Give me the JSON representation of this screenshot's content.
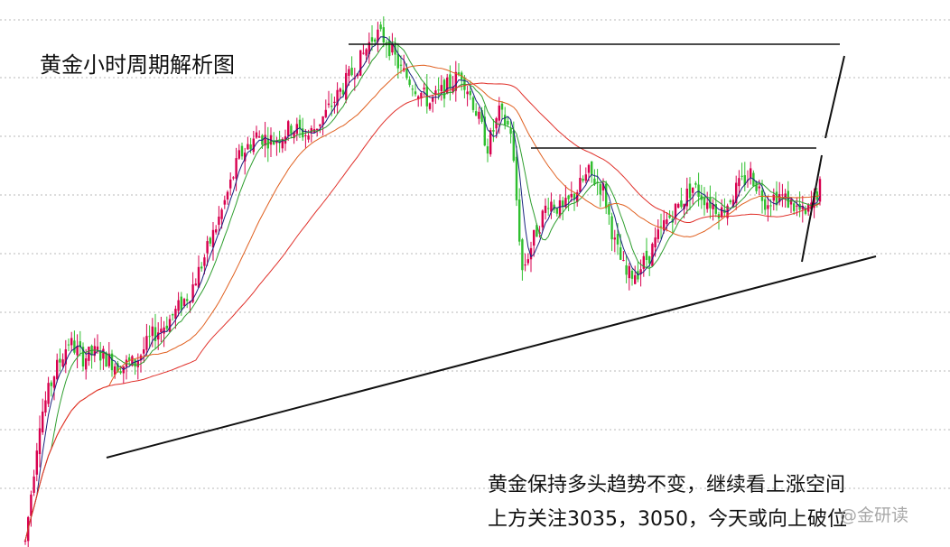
{
  "title": "黄金小时周期解析图",
  "annotations": [
    "黄金保持多头趋势不变，继续看上涨空间",
    "上方关注3035，3050，今天或向上破位"
  ],
  "watermark": "@金研读",
  "colors": {
    "up": "#d8004f",
    "down": "#2fbf2f",
    "ma_short": "#1a237e",
    "ma_mid": "#2e9e2e",
    "ma_long": "#e06020",
    "ma_xlong": "#e0302a",
    "trendline": "#111111",
    "grid": "#b8b8b8"
  },
  "chart_data": {
    "type": "candlestick",
    "timeframe": "hourly",
    "price_axis_visible": false,
    "grid": "dashed horizontal",
    "trendlines": [
      {
        "name": "rising support",
        "style": "solid"
      },
      {
        "name": "top resistance",
        "style": "solid"
      },
      {
        "name": "middle resistance",
        "style": "solid"
      },
      {
        "name": "converging projection",
        "style": "solid"
      }
    ],
    "moving_averages": [
      "ma_short",
      "ma_mid",
      "ma_long",
      "ma_xlong"
    ],
    "shape_keypoints": [
      [
        0,
        0.0
      ],
      [
        5,
        0.45
      ],
      [
        10,
        0.62
      ],
      [
        15,
        0.74
      ],
      [
        20,
        0.68
      ],
      [
        25,
        0.7
      ],
      [
        32,
        0.65
      ],
      [
        38,
        0.66
      ],
      [
        44,
        0.76
      ],
      [
        50,
        0.82
      ],
      [
        57,
        0.92
      ],
      [
        62,
        1.05
      ],
      [
        68,
        1.22
      ],
      [
        74,
        1.42
      ],
      [
        80,
        1.5
      ],
      [
        86,
        1.48
      ],
      [
        92,
        1.53
      ],
      [
        98,
        1.5
      ],
      [
        104,
        1.58
      ],
      [
        110,
        1.68
      ],
      [
        116,
        1.78
      ],
      [
        121,
        1.88
      ],
      [
        125,
        1.85
      ],
      [
        130,
        1.74
      ],
      [
        135,
        1.68
      ],
      [
        140,
        1.62
      ],
      [
        146,
        1.68
      ],
      [
        151,
        1.73
      ],
      [
        155,
        1.62
      ],
      [
        160,
        1.46
      ],
      [
        164,
        1.58
      ],
      [
        168,
        1.52
      ],
      [
        172,
        1.0
      ],
      [
        176,
        1.12
      ],
      [
        181,
        1.26
      ],
      [
        186,
        1.22
      ],
      [
        191,
        1.3
      ],
      [
        195,
        1.36
      ],
      [
        200,
        1.3
      ],
      [
        204,
        1.1
      ],
      [
        208,
        0.98
      ],
      [
        212,
        1.0
      ],
      [
        216,
        1.06
      ],
      [
        221,
        1.17
      ],
      [
        226,
        1.24
      ],
      [
        231,
        1.31
      ],
      [
        236,
        1.26
      ],
      [
        241,
        1.22
      ],
      [
        246,
        1.3
      ],
      [
        251,
        1.36
      ],
      [
        256,
        1.26
      ],
      [
        261,
        1.28
      ],
      [
        266,
        1.24
      ],
      [
        270,
        1.2
      ],
      [
        275,
        1.31
      ]
    ]
  }
}
